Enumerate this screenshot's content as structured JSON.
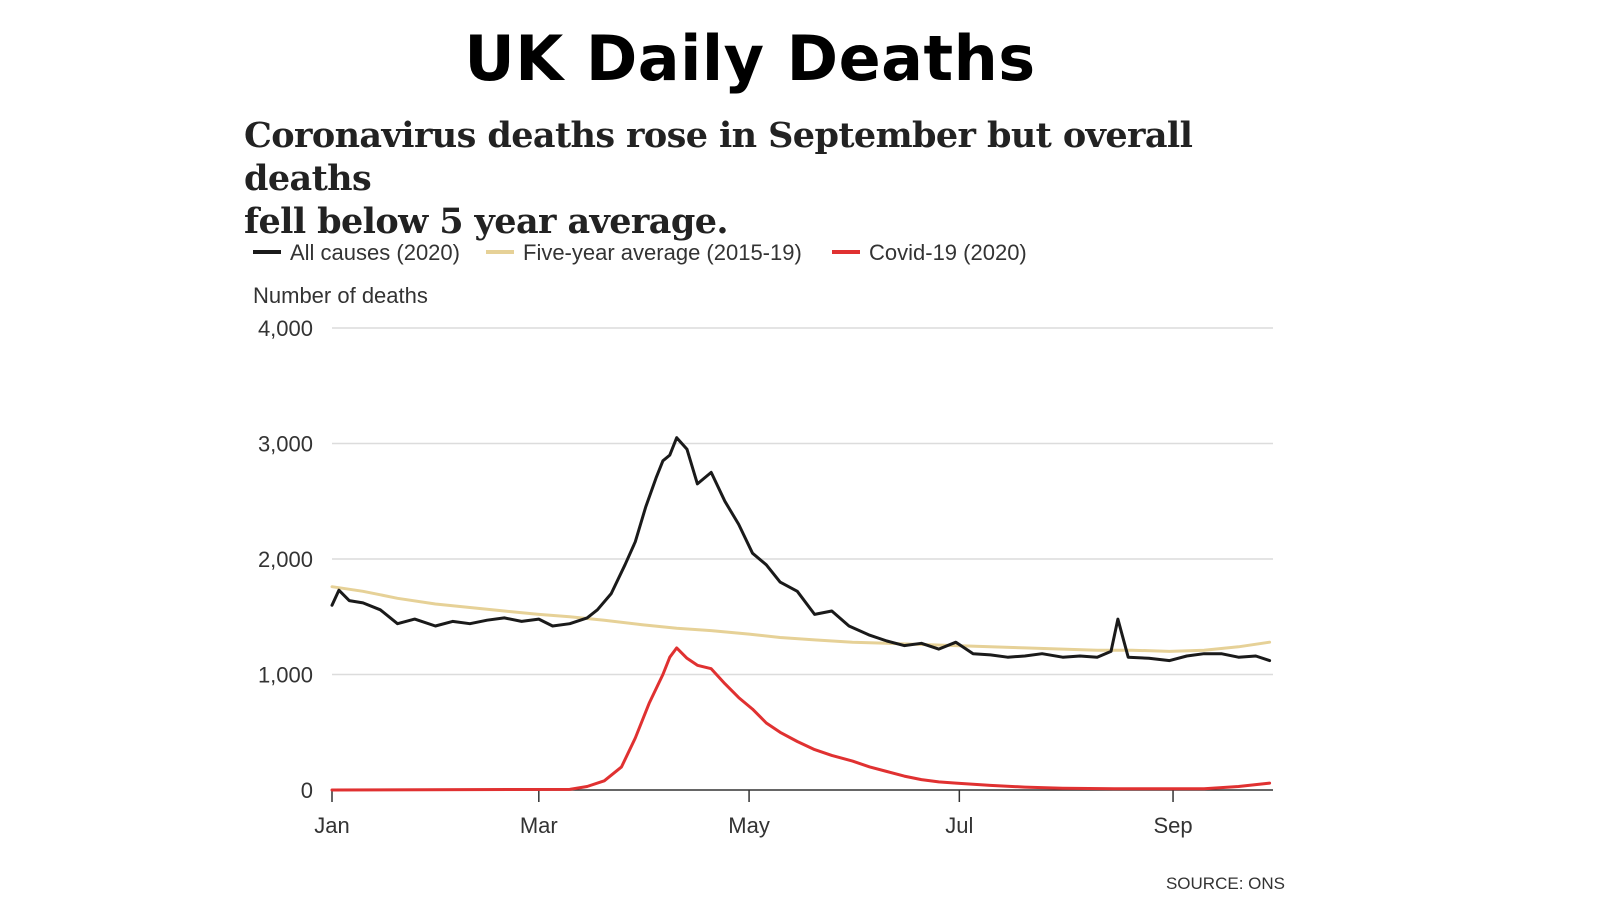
{
  "header": {
    "title": "UK Daily Deaths",
    "subtitle_line1": "Coronavirus deaths rose in September but overall deaths",
    "subtitle_line2": "fell below 5 year average."
  },
  "source": "SOURCE: ONS",
  "chart_data": {
    "type": "line",
    "ylabel": "Number of deaths",
    "ylim": [
      0,
      4000
    ],
    "yticks": [
      0,
      1000,
      2000,
      3000,
      4000
    ],
    "ytick_labels": [
      "0",
      "1,000",
      "2,000",
      "3,000",
      "4,000"
    ],
    "xlim": [
      "2020-01-01",
      "2020-09-30"
    ],
    "xticks": [
      "2020-01-01",
      "2020-03-01",
      "2020-05-01",
      "2020-07-01",
      "2020-09-01"
    ],
    "xtick_labels": [
      "Jan",
      "Mar",
      "May",
      "Jul",
      "Sep"
    ],
    "grid": true,
    "legend_position": "top-left",
    "series": [
      {
        "name": "All causes (2020)",
        "color": "#1a1a1a",
        "x": [
          "2020-01-01",
          "2020-01-03",
          "2020-01-06",
          "2020-01-10",
          "2020-01-15",
          "2020-01-20",
          "2020-01-25",
          "2020-01-31",
          "2020-02-05",
          "2020-02-10",
          "2020-02-15",
          "2020-02-20",
          "2020-02-25",
          "2020-03-01",
          "2020-03-05",
          "2020-03-10",
          "2020-03-15",
          "2020-03-18",
          "2020-03-22",
          "2020-03-26",
          "2020-03-29",
          "2020-04-01",
          "2020-04-04",
          "2020-04-06",
          "2020-04-08",
          "2020-04-10",
          "2020-04-13",
          "2020-04-16",
          "2020-04-20",
          "2020-04-24",
          "2020-04-28",
          "2020-05-02",
          "2020-05-06",
          "2020-05-10",
          "2020-05-15",
          "2020-05-20",
          "2020-05-25",
          "2020-05-30",
          "2020-06-05",
          "2020-06-10",
          "2020-06-15",
          "2020-06-20",
          "2020-06-25",
          "2020-06-30",
          "2020-07-05",
          "2020-07-10",
          "2020-07-15",
          "2020-07-20",
          "2020-07-25",
          "2020-07-31",
          "2020-08-05",
          "2020-08-10",
          "2020-08-14",
          "2020-08-16",
          "2020-08-19",
          "2020-08-25",
          "2020-08-31",
          "2020-09-05",
          "2020-09-10",
          "2020-09-15",
          "2020-09-20",
          "2020-09-25",
          "2020-09-29"
        ],
        "values": [
          1600,
          1730,
          1640,
          1620,
          1560,
          1440,
          1480,
          1420,
          1460,
          1440,
          1470,
          1490,
          1460,
          1480,
          1420,
          1440,
          1490,
          1560,
          1700,
          1950,
          2150,
          2450,
          2700,
          2850,
          2900,
          3050,
          2950,
          2650,
          2750,
          2500,
          2300,
          2050,
          1950,
          1800,
          1720,
          1520,
          1550,
          1420,
          1340,
          1290,
          1250,
          1270,
          1220,
          1280,
          1180,
          1170,
          1150,
          1160,
          1180,
          1150,
          1160,
          1150,
          1200,
          1480,
          1150,
          1140,
          1120,
          1160,
          1180,
          1180,
          1150,
          1160,
          1120
        ]
      },
      {
        "name": "Five-year average (2015-19)",
        "color": "#e6d197",
        "x": [
          "2020-01-01",
          "2020-01-10",
          "2020-01-20",
          "2020-01-31",
          "2020-02-10",
          "2020-02-20",
          "2020-03-01",
          "2020-03-10",
          "2020-03-20",
          "2020-03-31",
          "2020-04-10",
          "2020-04-20",
          "2020-05-01",
          "2020-05-10",
          "2020-05-20",
          "2020-05-31",
          "2020-06-10",
          "2020-06-20",
          "2020-06-30",
          "2020-07-10",
          "2020-07-20",
          "2020-07-31",
          "2020-08-10",
          "2020-08-20",
          "2020-08-31",
          "2020-09-10",
          "2020-09-20",
          "2020-09-29"
        ],
        "values": [
          1760,
          1720,
          1660,
          1610,
          1580,
          1550,
          1520,
          1500,
          1470,
          1430,
          1400,
          1380,
          1350,
          1320,
          1300,
          1280,
          1270,
          1260,
          1250,
          1240,
          1230,
          1220,
          1210,
          1210,
          1200,
          1210,
          1240,
          1280
        ]
      },
      {
        "name": "Covid-19 (2020)",
        "color": "#e03131",
        "x": [
          "2020-01-01",
          "2020-03-10",
          "2020-03-15",
          "2020-03-20",
          "2020-03-25",
          "2020-03-29",
          "2020-04-02",
          "2020-04-06",
          "2020-04-08",
          "2020-04-10",
          "2020-04-13",
          "2020-04-16",
          "2020-04-20",
          "2020-04-24",
          "2020-04-28",
          "2020-05-02",
          "2020-05-06",
          "2020-05-10",
          "2020-05-15",
          "2020-05-20",
          "2020-05-25",
          "2020-05-31",
          "2020-06-05",
          "2020-06-10",
          "2020-06-15",
          "2020-06-20",
          "2020-06-25",
          "2020-06-30",
          "2020-07-10",
          "2020-07-20",
          "2020-07-31",
          "2020-08-15",
          "2020-08-31",
          "2020-09-10",
          "2020-09-20",
          "2020-09-29"
        ],
        "values": [
          0,
          5,
          30,
          80,
          200,
          450,
          750,
          1000,
          1150,
          1230,
          1140,
          1080,
          1050,
          920,
          800,
          700,
          580,
          500,
          420,
          350,
          300,
          250,
          200,
          160,
          120,
          90,
          70,
          60,
          40,
          25,
          15,
          10,
          10,
          10,
          30,
          60
        ]
      }
    ]
  }
}
